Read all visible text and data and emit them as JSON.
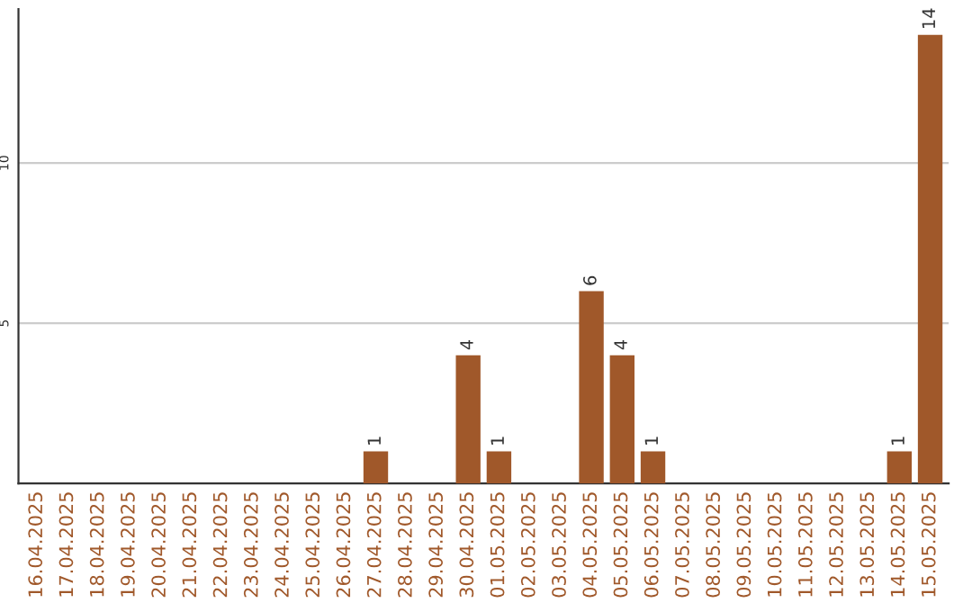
{
  "chart_data": {
    "type": "bar",
    "categories": [
      "16.04.2025",
      "17.04.2025",
      "18.04.2025",
      "19.04.2025",
      "20.04.2025",
      "21.04.2025",
      "22.04.2025",
      "23.04.2025",
      "24.04.2025",
      "25.04.2025",
      "26.04.2025",
      "27.04.2025",
      "28.04.2025",
      "29.04.2025",
      "30.04.2025",
      "01.05.2025",
      "02.05.2025",
      "03.05.2025",
      "04.05.2025",
      "05.05.2025",
      "06.05.2025",
      "07.05.2025",
      "08.05.2025",
      "09.05.2025",
      "10.05.2025",
      "11.05.2025",
      "12.05.2025",
      "13.05.2025",
      "14.05.2025",
      "15.05.2025"
    ],
    "values": [
      0,
      0,
      0,
      0,
      0,
      0,
      0,
      0,
      0,
      0,
      0,
      1,
      0,
      0,
      4,
      1,
      0,
      0,
      6,
      4,
      1,
      0,
      0,
      0,
      0,
      0,
      0,
      0,
      1,
      14
    ],
    "value_labels": [
      null,
      null,
      null,
      null,
      null,
      null,
      null,
      null,
      null,
      null,
      null,
      "1",
      null,
      null,
      "4",
      "1",
      null,
      null,
      "6",
      "4",
      "1",
      null,
      null,
      null,
      null,
      null,
      null,
      null,
      "1",
      "14"
    ],
    "color": "#a0582a",
    "ylim": [
      0,
      14.8
    ],
    "yticks": [
      5,
      10
    ],
    "grid": "y"
  }
}
